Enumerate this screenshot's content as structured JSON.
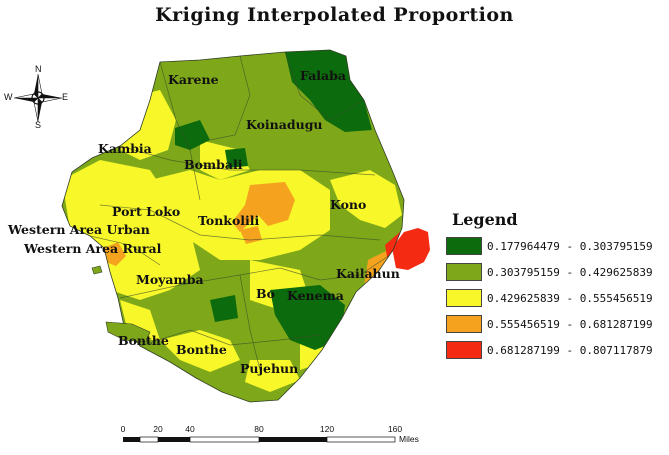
{
  "title": "Kriging Interpolated Proportion",
  "map": {
    "districts": [
      {
        "key": "karene",
        "name": "Karene"
      },
      {
        "key": "falaba",
        "name": "Falaba"
      },
      {
        "key": "koinadugu",
        "name": "Koinadugu"
      },
      {
        "key": "kambia",
        "name": "Kambia"
      },
      {
        "key": "bombali",
        "name": "Bombali"
      },
      {
        "key": "port_loko",
        "name": "Port Loko"
      },
      {
        "key": "tonkolili",
        "name": "Tonkolili"
      },
      {
        "key": "kono",
        "name": "Kono"
      },
      {
        "key": "western_area_urban",
        "name": "Western Area Urban"
      },
      {
        "key": "western_area_rural",
        "name": "Western Area Rural"
      },
      {
        "key": "moyamba",
        "name": "Moyamba"
      },
      {
        "key": "kailahun",
        "name": "Kailahun"
      },
      {
        "key": "bo",
        "name": "Bo"
      },
      {
        "key": "kenema",
        "name": "Kenema"
      },
      {
        "key": "bonthe_1",
        "name": "Bonthe"
      },
      {
        "key": "bonthe_2",
        "name": "Bonthe"
      },
      {
        "key": "pujehun",
        "name": "Pujehun"
      }
    ]
  },
  "legend": {
    "title": "Legend",
    "classes": [
      {
        "label": "0.177964479 - 0.303795159",
        "color": "#0c6b0c"
      },
      {
        "label": "0.303795159 - 0.429625839",
        "color": "#7ea81a"
      },
      {
        "label": "0.429625839 - 0.555456519",
        "color": "#f7f72a"
      },
      {
        "label": "0.555456519 - 0.681287199",
        "color": "#f5a31e"
      },
      {
        "label": "0.681287199 - 0.807117879",
        "color": "#f52a12"
      }
    ]
  },
  "compass": {
    "n": "N",
    "s": "S",
    "e": "E",
    "w": "W"
  },
  "scale_bar": {
    "ticks": [
      "0",
      "20",
      "40",
      "80",
      "120",
      "160"
    ],
    "unit": "Miles"
  }
}
